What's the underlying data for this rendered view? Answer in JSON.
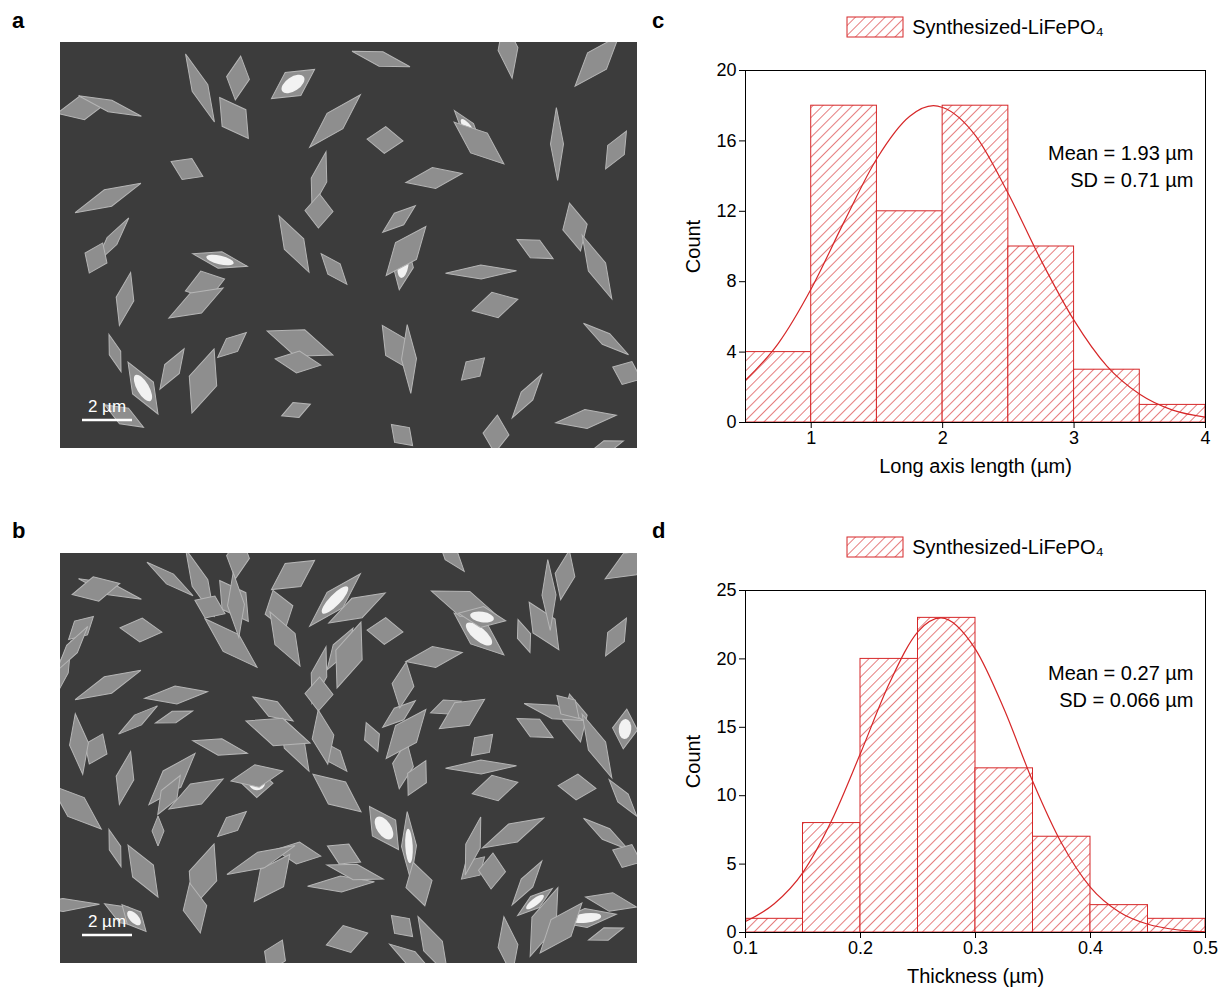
{
  "images": [
    {
      "panel": "a",
      "scale_bar": "2 µm"
    },
    {
      "panel": "b",
      "scale_bar": "2 µm"
    }
  ],
  "chart_data": [
    {
      "panel": "c",
      "type": "histogram",
      "x_label": "Long axis length (µm)",
      "y_label": "Count",
      "bins": [
        0.5,
        1.0,
        1.5,
        2.0,
        2.5,
        3.0,
        3.5,
        4.0
      ],
      "series": [
        {
          "name": "Synthesized-LiFePO₄",
          "color": "#d62728",
          "values": [
            4,
            18,
            12,
            18,
            10,
            3,
            1
          ]
        }
      ],
      "fit_curve": {
        "type": "line",
        "x": [
          0.5,
          0.75,
          1.0,
          1.25,
          1.5,
          1.75,
          1.93,
          2.0,
          2.25,
          2.5,
          2.75,
          3.0,
          3.25,
          3.5,
          3.75,
          4.0
        ],
        "y": [
          2.4,
          4.5,
          7.6,
          11.4,
          15.0,
          17.4,
          18.0,
          17.9,
          16.3,
          13.0,
          9.2,
          5.8,
          3.2,
          1.6,
          0.7,
          0.3
        ]
      },
      "annotations": [
        "Mean = 1.93 µm",
        "SD = 0.71 µm"
      ],
      "xlim": [
        0.5,
        4
      ],
      "xticks": [
        1,
        2,
        3,
        4
      ],
      "ylim": [
        0,
        20
      ],
      "yticks": [
        0,
        4,
        8,
        12,
        16,
        20
      ],
      "legend": "top"
    },
    {
      "panel": "d",
      "type": "histogram",
      "x_label": "Thickness (µm)",
      "y_label": "Count",
      "bins": [
        0.1,
        0.15,
        0.2,
        0.25,
        0.3,
        0.35,
        0.4,
        0.45,
        0.5
      ],
      "series": [
        {
          "name": "Synthesized-LiFePO₄",
          "color": "#d62728",
          "values": [
            1,
            8,
            20,
            23,
            12,
            7,
            2,
            1
          ]
        }
      ],
      "fit_curve": {
        "type": "line",
        "x": [
          0.1,
          0.125,
          0.15,
          0.175,
          0.2,
          0.225,
          0.25,
          0.27,
          0.3,
          0.325,
          0.35,
          0.375,
          0.4,
          0.425,
          0.45,
          0.475,
          0.5
        ],
        "y": [
          0.8,
          2.1,
          4.4,
          8.2,
          13.1,
          18.2,
          22.0,
          23.0,
          20.7,
          16.3,
          11.0,
          6.5,
          3.3,
          1.5,
          0.6,
          0.2,
          0.05
        ]
      },
      "annotations": [
        "Mean = 0.27 µm",
        "SD = 0.066 µm"
      ],
      "xlim": [
        0.1,
        0.5
      ],
      "xticks": [
        0.1,
        0.2,
        0.3,
        0.4,
        0.5
      ],
      "ylim": [
        0,
        25
      ],
      "yticks": [
        0,
        5,
        10,
        15,
        20,
        25
      ],
      "legend": "top"
    }
  ]
}
